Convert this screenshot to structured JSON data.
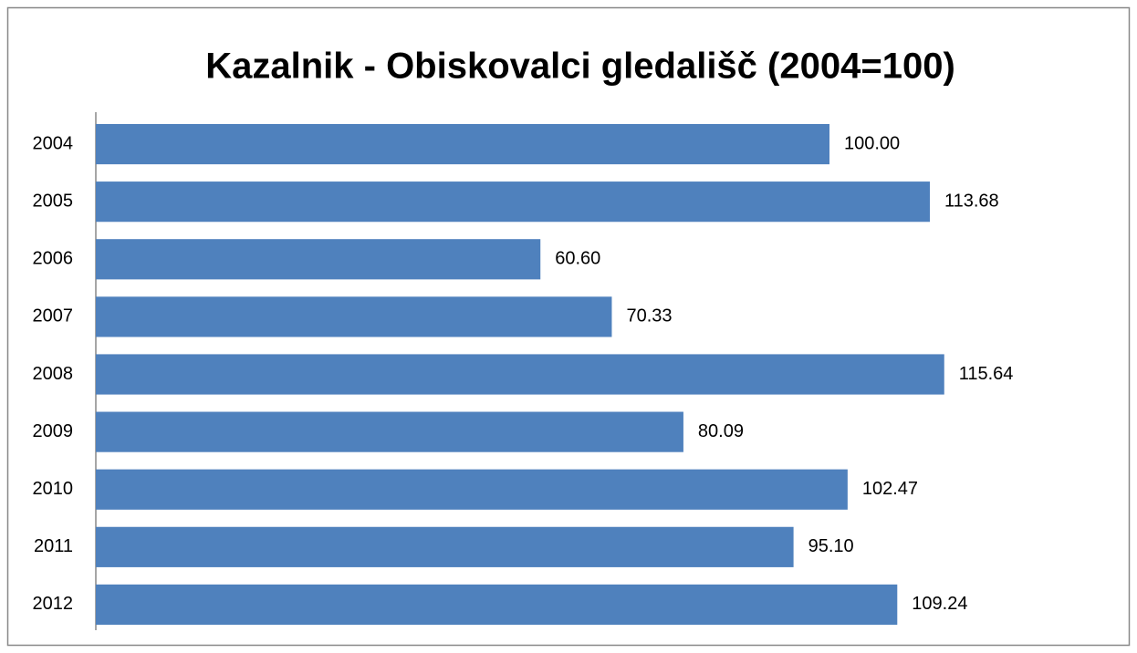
{
  "chart_data": {
    "type": "barh",
    "title": "Kazalnik - Obiskovalci gledališč (2004=100)",
    "categories": [
      "2004",
      "2005",
      "2006",
      "2007",
      "2008",
      "2009",
      "2010",
      "2011",
      "2012"
    ],
    "values": [
      100,
      113.68,
      60.6,
      70.33,
      115.64,
      80.09,
      102.47,
      95.1,
      109.24
    ],
    "value_labels": [
      "100.00",
      "113.68",
      "60.60",
      "70.33",
      "115.64",
      "80.09",
      "102.47",
      "95.10",
      "109.24"
    ],
    "color": "#4f81bd",
    "xlim": [
      0,
      140
    ]
  }
}
